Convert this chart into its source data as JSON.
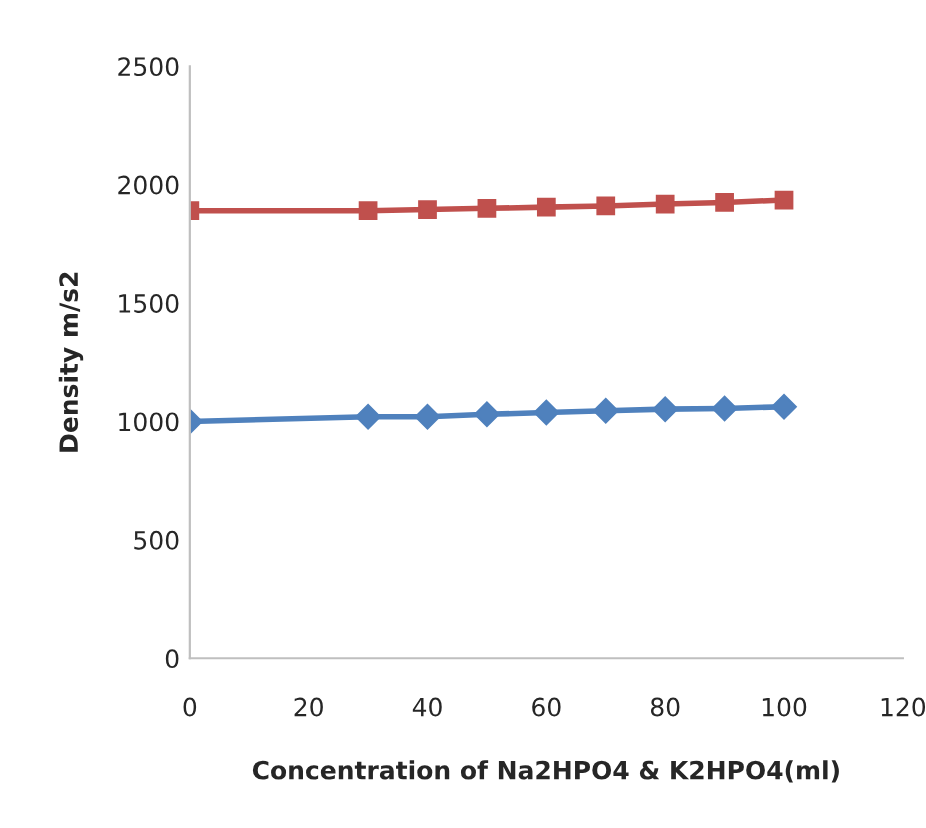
{
  "chart_data": {
    "type": "line",
    "xlabel": "Concentration of Na2HPO4 & K2HPO4(ml)",
    "ylabel": "Density m/s2",
    "x": [
      0,
      30,
      40,
      50,
      60,
      70,
      80,
      90,
      100
    ],
    "series": [
      {
        "color": "#4f81bd",
        "marker": "diamond",
        "values": [
          1000,
          1020,
          1020,
          1030,
          1038,
          1045,
          1052,
          1055,
          1062
        ]
      },
      {
        "color": "#c0504d",
        "marker": "square",
        "values": [
          1890,
          1890,
          1895,
          1900,
          1905,
          1910,
          1918,
          1925,
          1935
        ]
      }
    ],
    "xlim": [
      0,
      120
    ],
    "xticks": [
      0,
      20,
      40,
      60,
      80,
      100,
      120
    ],
    "ylim": [
      0,
      2500
    ],
    "yticks": [
      0,
      500,
      1000,
      1500,
      2000,
      2500
    ],
    "grid": false,
    "legend": false
  }
}
